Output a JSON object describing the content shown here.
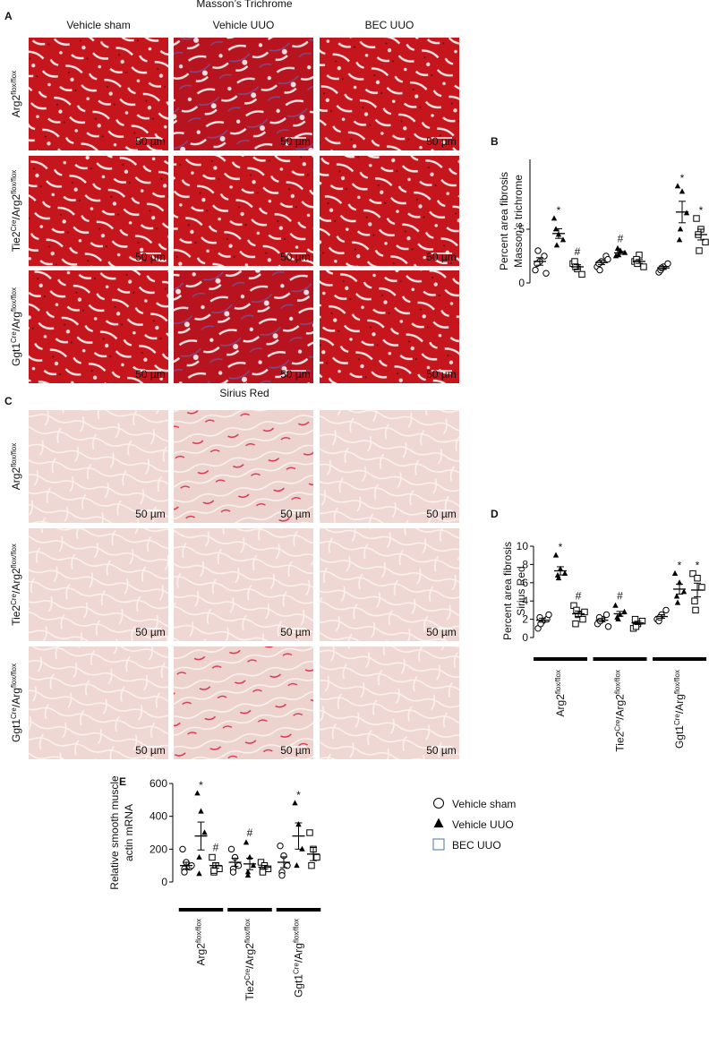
{
  "panel_a": {
    "letter": "A",
    "title": "Masson’s Trichrome",
    "columns": [
      "Vehicle sham",
      "Vehicle UUO",
      "BEC UUO"
    ],
    "rows": [
      [
        "Arg2",
        "flox/flox"
      ],
      [
        "Tie2",
        "Cre",
        "/Arg2",
        "flox/flox"
      ],
      [
        "Ggt1",
        "Cre",
        "/Arg",
        "flox/flox"
      ]
    ],
    "scale_bar": "50 µm"
  },
  "panel_c": {
    "letter": "C",
    "title": "Sirius Red",
    "rows": [
      [
        "Arg2",
        "flox/flox"
      ],
      [
        "Tie2",
        "Cre",
        "/Arg2",
        "flox/flox"
      ],
      [
        "Ggt1",
        "Cre",
        "/Arg",
        "flox/flox"
      ]
    ],
    "scale_bar": "50 µm"
  },
  "chart_data": [
    {
      "type": "dotplot",
      "panel": "B",
      "y_label": [
        "Percent area fibrosis",
        "Masson’s trichrome"
      ],
      "ylim": [
        0,
        11.5
      ],
      "yticks": [
        0,
        5
      ],
      "series": [
        {
          "marker": "circle",
          "points": [
            [
              1.2,
              2.0,
              2.5,
              1.8,
              3.0,
              0.9
            ],
            [
              1.5,
              2.0,
              2.5,
              1.8,
              1.2,
              2.2
            ],
            [
              1.0,
              1.5,
              1.8,
              1.2,
              1.4
            ]
          ],
          "means": [
            2.0,
            1.9,
            1.4
          ],
          "sems": [
            0.35,
            0.2,
            0.14
          ],
          "annotations": [
            null,
            null,
            null
          ]
        },
        {
          "marker": "triangle",
          "points": [
            [
              6.0,
              4.5,
              4.0,
              5.0,
              3.5
            ],
            [
              2.5,
              3.0,
              2.8,
              3.2,
              2.6
            ],
            [
              9.0,
              8.5,
              6.5,
              4.0,
              5.0
            ]
          ],
          "means": [
            4.6,
            2.8,
            6.6
          ],
          "sems": [
            0.45,
            0.13,
            1.0
          ],
          "annotations": [
            "*",
            "#",
            "*"
          ]
        },
        {
          "marker": "square",
          "points": [
            [
              1.8,
              1.3,
              0.8,
              2.0,
              1.5
            ],
            [
              2.0,
              2.6,
              1.5,
              2.2,
              1.8
            ],
            [
              6.0,
              5.0,
              3.8,
              4.5,
              3.0
            ]
          ],
          "means": [
            1.5,
            2.0,
            4.5
          ],
          "sems": [
            0.2,
            0.18,
            0.5
          ],
          "annotations": [
            "#",
            null,
            "*"
          ]
        }
      ]
    },
    {
      "type": "dotplot",
      "panel": "D",
      "y_label": [
        "Percent area fibrosis",
        "Sirius Red"
      ],
      "ylim": [
        0,
        10
      ],
      "yticks": [
        0,
        2,
        4,
        6,
        8,
        10
      ],
      "categories": [
        [
          "Arg2",
          "flox/flox"
        ],
        [
          "Tie2",
          "Cre",
          "/Arg2",
          "flox/flox"
        ],
        [
          "Ggt1",
          "Cre",
          "/Arg",
          "flox/flox"
        ]
      ],
      "series": [
        {
          "marker": "circle",
          "points": [
            [
              1.0,
              1.8,
              2.0,
              2.2,
              1.5,
              2.5
            ],
            [
              1.5,
              2.0,
              2.5,
              2.2,
              1.8,
              1.2
            ],
            [
              2.0,
              2.5,
              3.0,
              1.8,
              2.2
            ]
          ],
          "means": [
            1.9,
            1.9,
            2.3
          ],
          "sems": [
            0.22,
            0.19,
            0.2
          ],
          "annotations": [
            null,
            null,
            null
          ]
        },
        {
          "marker": "triangle",
          "points": [
            [
              9.0,
              7.5,
              7.0,
              6.8,
              6.5
            ],
            [
              3.5,
              2.5,
              2.8,
              2.2,
              2.0
            ],
            [
              7.0,
              6.0,
              5.0,
              4.5,
              3.8
            ]
          ],
          "means": [
            7.3,
            2.6,
            5.3
          ],
          "sems": [
            0.45,
            0.26,
            0.55
          ],
          "annotations": [
            "*",
            "#",
            "*"
          ]
        },
        {
          "marker": "square",
          "points": [
            [
              3.5,
              2.5,
              2.0,
              1.5,
              3.0,
              2.8
            ],
            [
              1.0,
              1.5,
              1.8,
              2.0,
              1.2
            ],
            [
              7.0,
              6.5,
              5.5,
              4.0,
              3.0
            ]
          ],
          "means": [
            2.6,
            1.6,
            5.2
          ],
          "sems": [
            0.3,
            0.18,
            0.75
          ],
          "annotations": [
            "#",
            null,
            "*"
          ]
        }
      ]
    },
    {
      "type": "dotplot",
      "panel": "E",
      "y_label": [
        "Relative smooth muscle",
        "actin  mRNA"
      ],
      "ylim": [
        0,
        600
      ],
      "yticks": [
        0,
        200,
        400,
        600
      ],
      "categories": [
        [
          "Arg2",
          "flox/flox"
        ],
        [
          "Tie2",
          "Cre",
          "/Arg2",
          "flox/flox"
        ],
        [
          "Ggt1",
          "Cre",
          "/Arg",
          "flox/flox"
        ]
      ],
      "series": [
        {
          "name": "Vehicle sham",
          "marker": "circle",
          "points": [
            [
              200,
              120,
              90,
              80,
              60,
              100
            ],
            [
              200,
              150,
              100,
              80,
              60
            ],
            [
              220,
              160,
              100,
              60,
              40
            ]
          ],
          "means": [
            100,
            120,
            120
          ],
          "sems": [
            20,
            25,
            33
          ],
          "annotations": [
            null,
            null,
            null
          ]
        },
        {
          "name": "Vehicle UUO",
          "marker": "triangle",
          "points": [
            [
              540,
              430,
              300,
              150,
              50
            ],
            [
              240,
              150,
              100,
              60,
              40
            ],
            [
              480,
              350,
              200,
              100
            ]
          ],
          "means": [
            280,
            110,
            280
          ],
          "sems": [
            85,
            35,
            80
          ],
          "annotations": [
            "*",
            "#",
            "*"
          ]
        },
        {
          "name": "BEC UUO",
          "marker": "square",
          "points": [
            [
              150,
              100,
              80,
              60,
              70
            ],
            [
              120,
              100,
              80,
              70,
              60
            ],
            [
              300,
              200,
              150,
              100
            ]
          ],
          "means": [
            100,
            90,
            170
          ],
          "sems": [
            16,
            11,
            40
          ],
          "annotations": [
            "#",
            null,
            null
          ]
        }
      ]
    }
  ]
}
